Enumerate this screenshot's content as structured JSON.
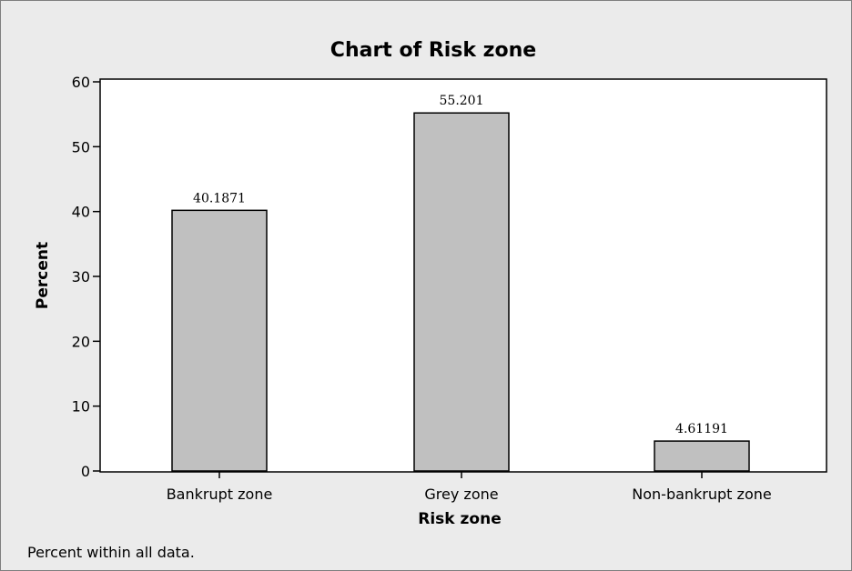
{
  "chart_data": {
    "type": "bar",
    "title": "Chart of Risk zone",
    "xlabel": "Risk zone",
    "ylabel": "Percent",
    "categories": [
      "Bankrupt zone",
      "Grey zone",
      "Non-bankrupt zone"
    ],
    "values": [
      40.1871,
      55.201,
      4.61191
    ],
    "value_labels": [
      "40.1871",
      "55.201",
      "4.61191"
    ],
    "ylim": [
      0,
      60
    ],
    "yticks": [
      "0",
      "10",
      "20",
      "30",
      "40",
      "50",
      "60"
    ],
    "grid": false,
    "bar_color": "#c0c0c0",
    "background_color": "#ebebeb",
    "plot_background_color": "#ffffff",
    "footnote": "Percent within all data."
  }
}
